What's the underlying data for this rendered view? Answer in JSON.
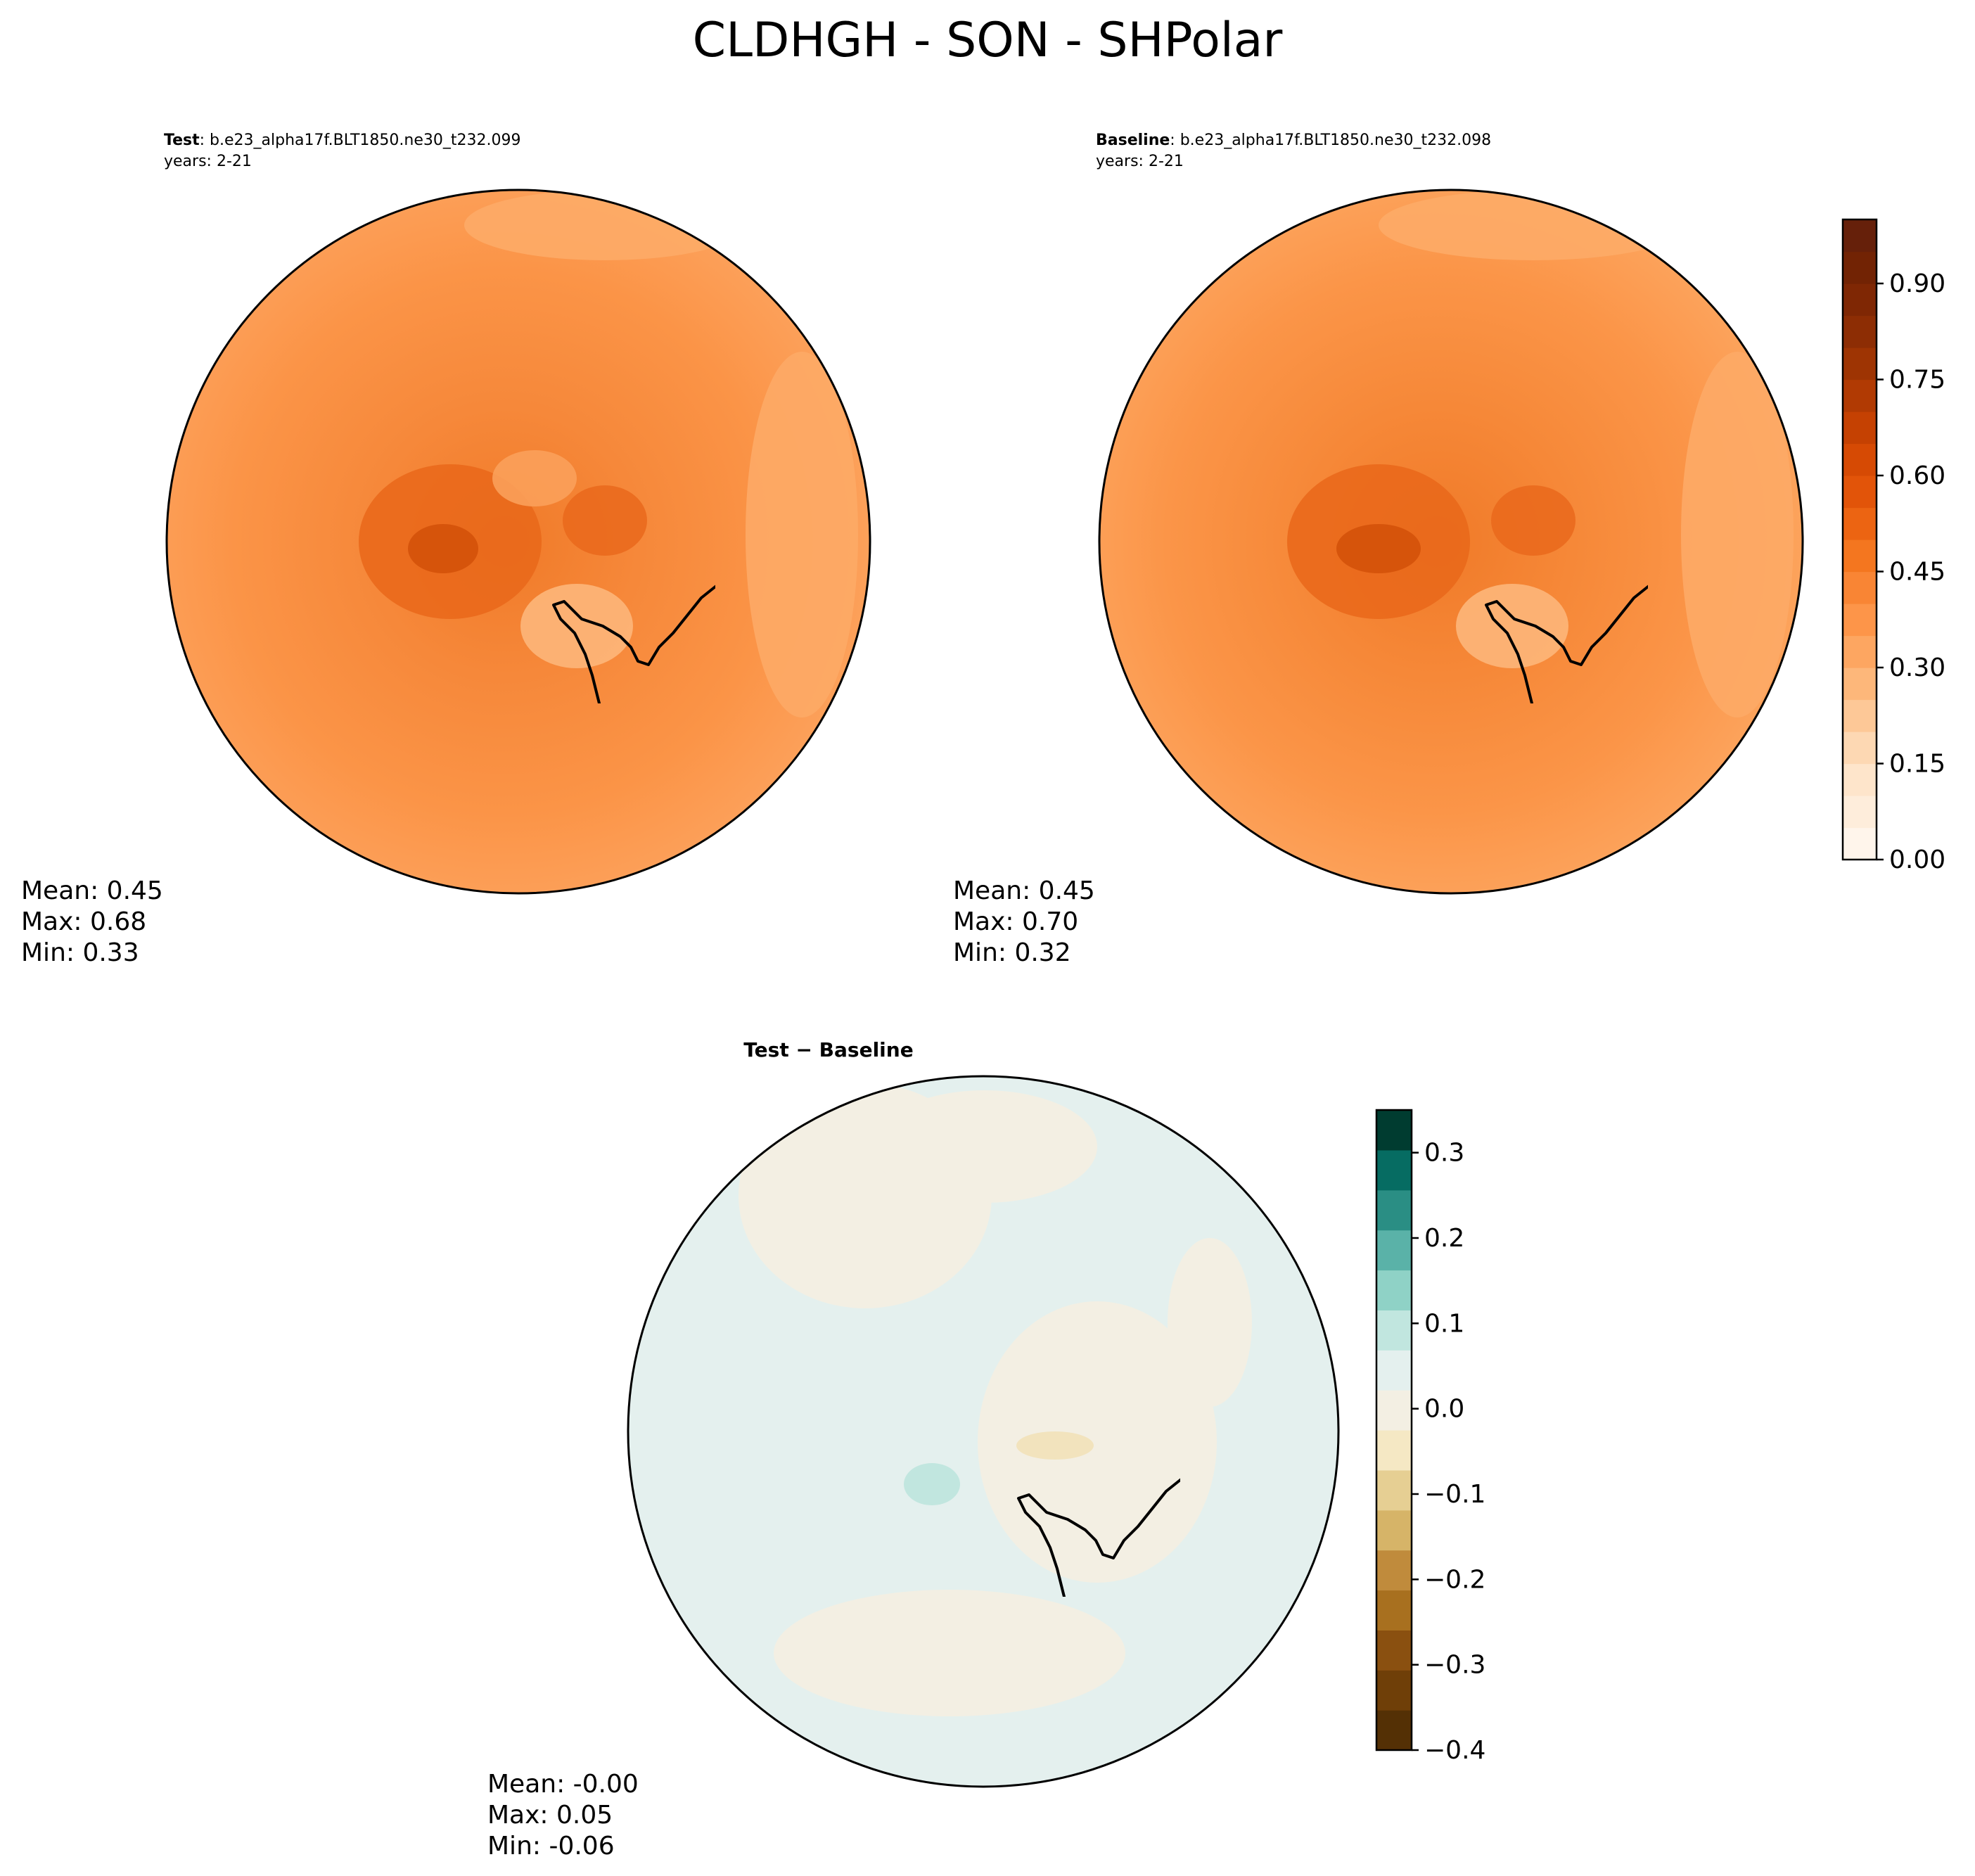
{
  "figure": {
    "title": "CLDHGH - SON - SHPolar"
  },
  "chart_data": [
    {
      "type": "heatmap",
      "panel": "test",
      "label_bold": "Test",
      "label_case": ": b.e23_alpha17f.BLT1850.ne30_t232.099",
      "years": "years: 2-21",
      "projection": "south-polar-stereographic",
      "stats": {
        "mean": "Mean:  0.45",
        "max": "Max:  0.68",
        "min": "Min:  0.33"
      },
      "colormap": "Oranges"
    },
    {
      "type": "heatmap",
      "panel": "baseline",
      "label_bold": "Baseline",
      "label_case": ": b.e23_alpha17f.BLT1850.ne30_t232.098",
      "years": "years: 2-21",
      "projection": "south-polar-stereographic",
      "stats": {
        "mean": "Mean:  0.45",
        "max": "Max:  0.70",
        "min": "Min:  0.32"
      },
      "colormap": "Oranges",
      "colorbar": {
        "ticks": [
          "0.00",
          "0.15",
          "0.30",
          "0.45",
          "0.60",
          "0.75",
          "0.90"
        ],
        "tick_values": [
          0.0,
          0.15,
          0.3,
          0.45,
          0.6,
          0.75,
          0.9
        ],
        "range": [
          0.0,
          1.0
        ],
        "levels": 20,
        "colors": [
          "#fff5eb",
          "#feeddb",
          "#fee5cb",
          "#fdd8b3",
          "#fdc897",
          "#fdb77a",
          "#fda661",
          "#fd9549",
          "#f98534",
          "#f4761f",
          "#ec6412",
          "#e25409",
          "#d64a04",
          "#c54102",
          "#b13a03",
          "#9e3403",
          "#8d2d04",
          "#7f2704",
          "#722304",
          "#66200a"
        ]
      }
    },
    {
      "type": "heatmap",
      "panel": "difference",
      "label_bold": "Test − Baseline",
      "projection": "south-polar-stereographic",
      "stats": {
        "mean": "Mean: -0.00",
        "max": "Max:  0.05",
        "min": "Min: -0.06"
      },
      "colormap": "BrBG",
      "colorbar": {
        "ticks": [
          "0.3",
          "0.2",
          "0.1",
          "0.0",
          "−0.1",
          "−0.2",
          "−0.3",
          "−0.4"
        ],
        "tick_values": [
          0.3,
          0.2,
          0.1,
          0.0,
          -0.1,
          -0.2,
          -0.3,
          -0.4
        ],
        "range": [
          -0.4,
          0.35
        ],
        "levels": 15,
        "colors": [
          "#543005",
          "#6f3f08",
          "#8a5010",
          "#a8701f",
          "#c08b3c",
          "#d6b468",
          "#e6cf93",
          "#f5e8c4",
          "#f3efe3",
          "#e4f0ee",
          "#c1e6df",
          "#8fd2c6",
          "#5ab2a8",
          "#2a8e84",
          "#066c62",
          "#003c30"
        ]
      }
    }
  ],
  "colors": {
    "ocean_test": "#fd9a4d",
    "land_outline": "#000000",
    "diff_neutral_pos": "#e4f0ee",
    "diff_neutral_neg": "#f3efe3"
  }
}
